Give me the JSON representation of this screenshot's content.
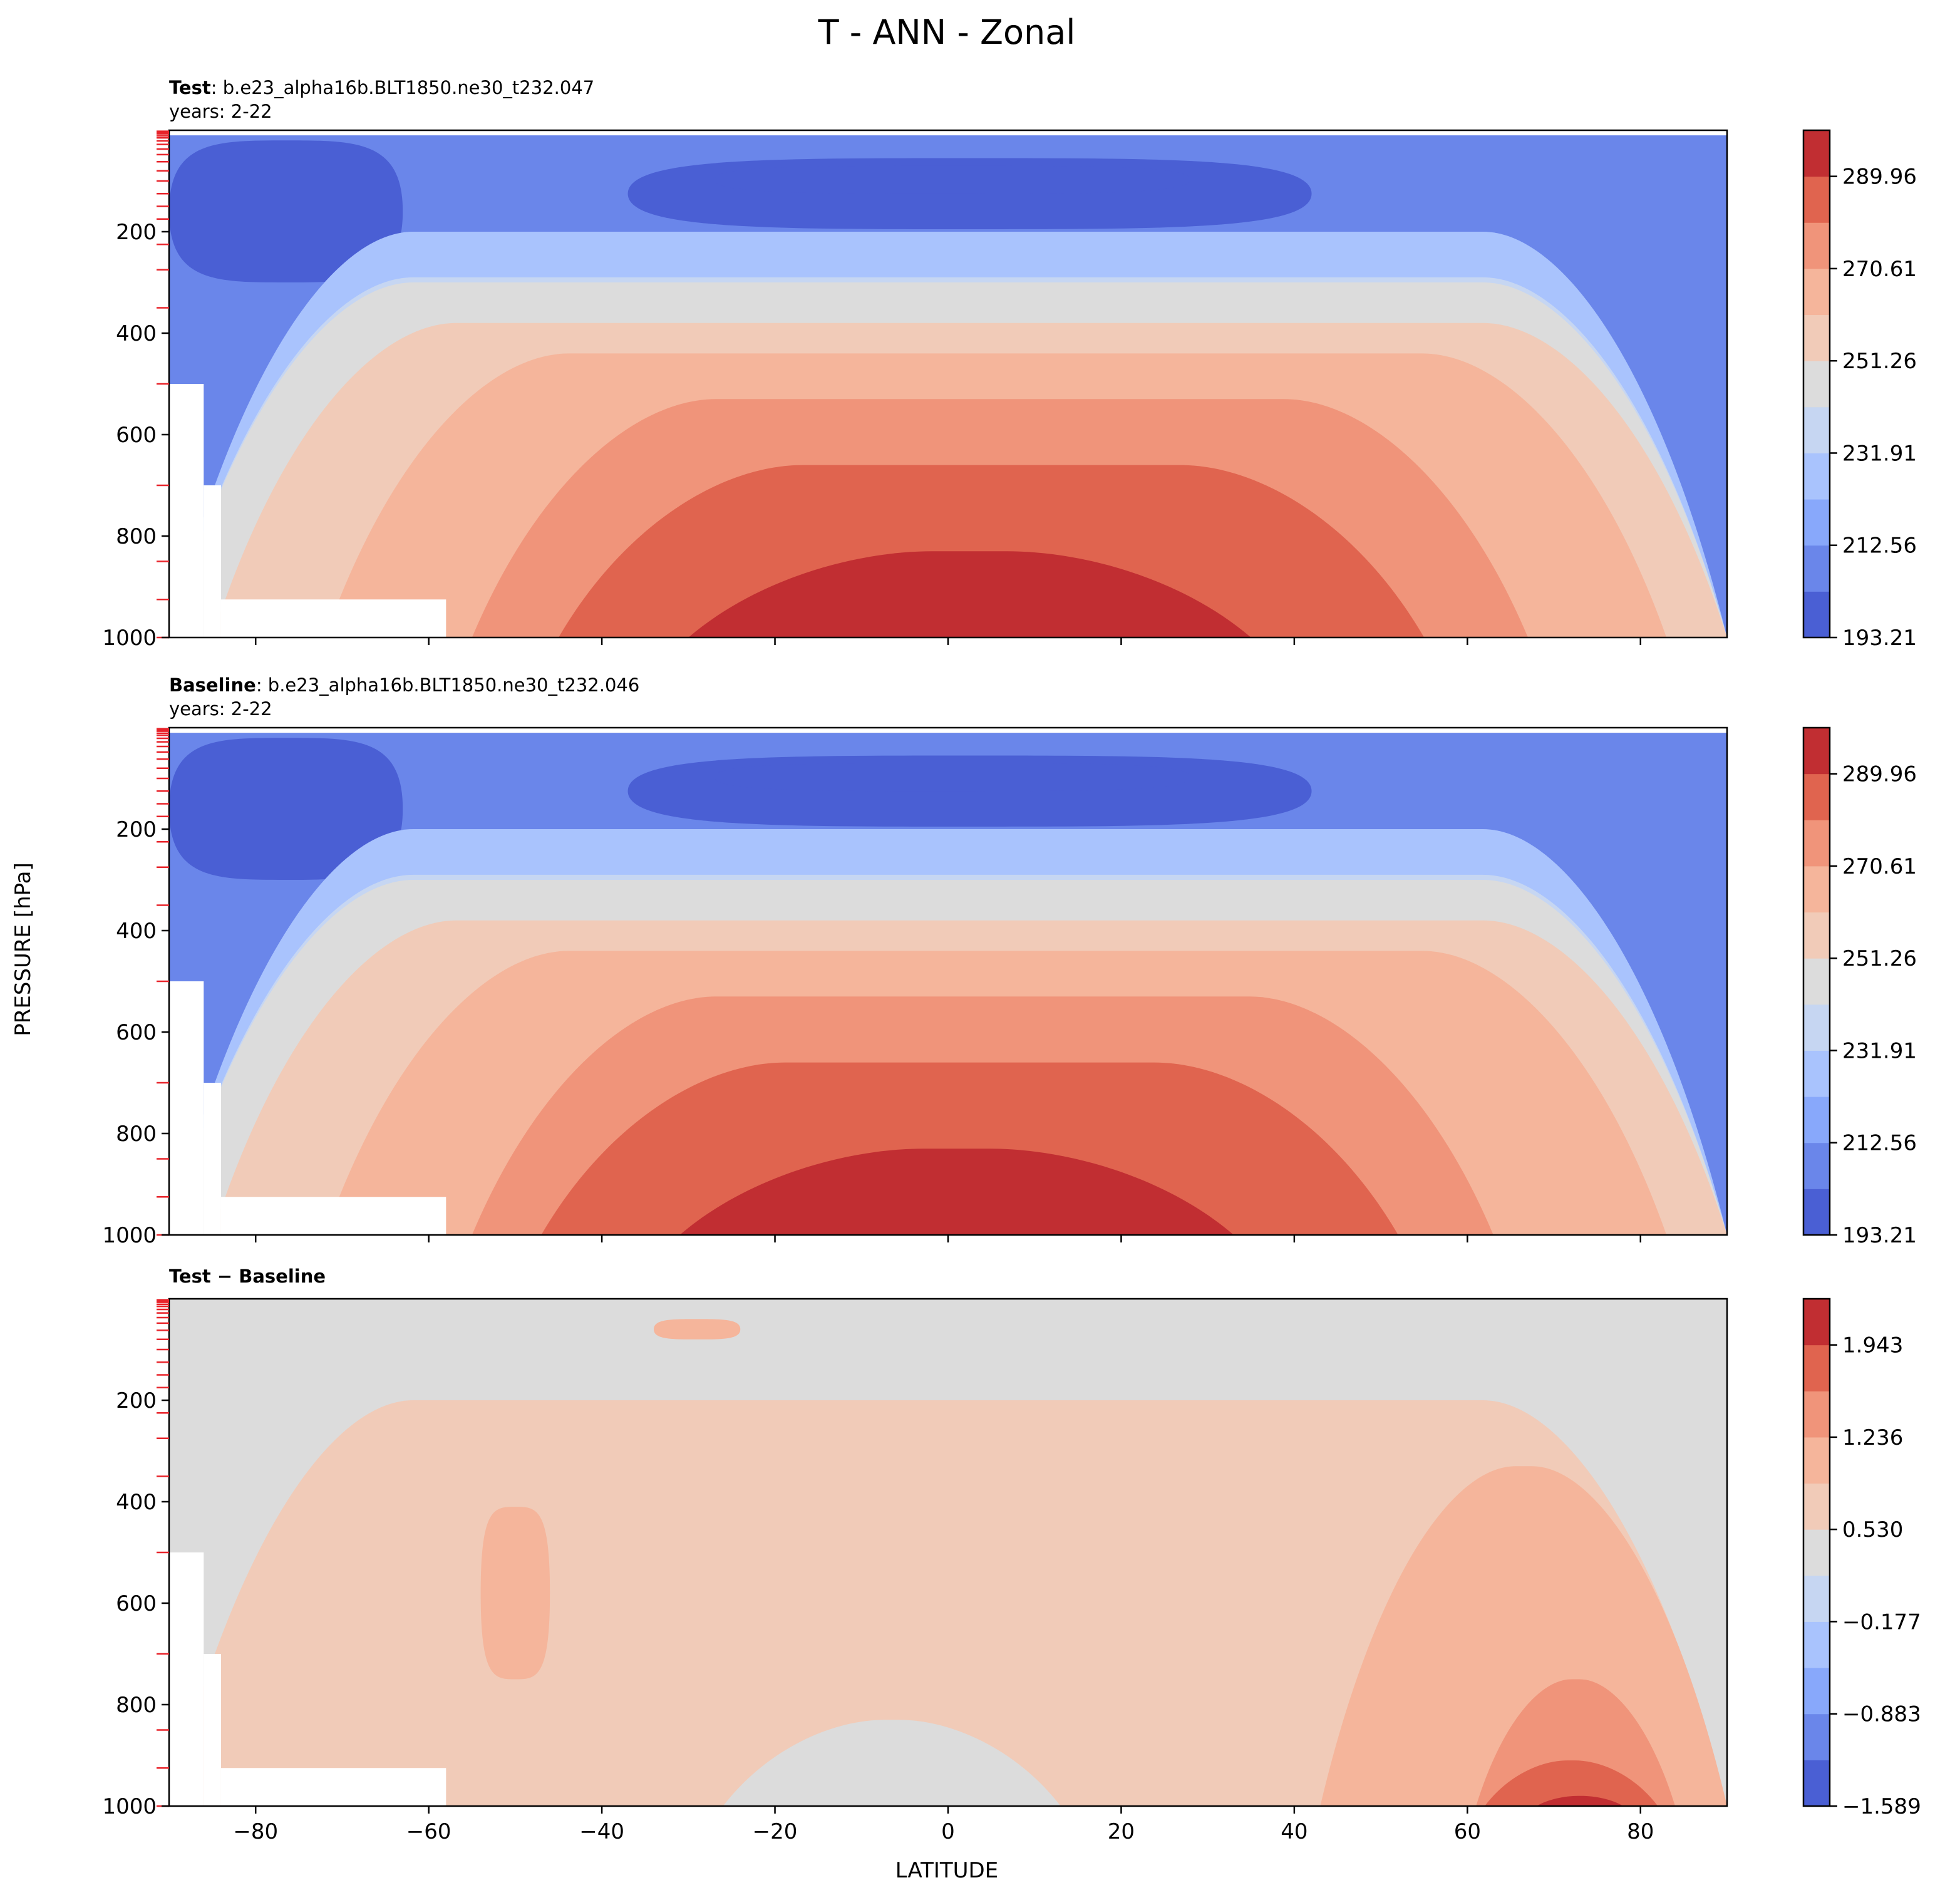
{
  "figure": {
    "title": "T - ANN - Zonal"
  },
  "panels": [
    {
      "id": "test",
      "label_bold": "Test",
      "label_rest": ": b.e23_alpha16b.BLT1850.ne30_t232.047",
      "years": "years: 2-22",
      "colorbar": {
        "ticks": [
          "193.21",
          "212.56",
          "231.91",
          "251.26",
          "270.61",
          "289.96"
        ],
        "colors": [
          "#4a5fd4",
          "#6a86ea",
          "#88a8fb",
          "#a9c3fd",
          "#c6d6f2",
          "#dcdcdc",
          "#f1cbb8",
          "#f5b59b",
          "#f0947a",
          "#e0644f",
          "#c12e32"
        ]
      }
    },
    {
      "id": "baseline",
      "label_bold": "Baseline",
      "label_rest": ": b.e23_alpha16b.BLT1850.ne30_t232.046",
      "years": "years: 2-22",
      "colorbar": {
        "ticks": [
          "193.21",
          "212.56",
          "231.91",
          "251.26",
          "270.61",
          "289.96"
        ],
        "colors": [
          "#4a5fd4",
          "#6a86ea",
          "#88a8fb",
          "#a9c3fd",
          "#c6d6f2",
          "#dcdcdc",
          "#f1cbb8",
          "#f5b59b",
          "#f0947a",
          "#e0644f",
          "#c12e32"
        ]
      }
    },
    {
      "id": "diff",
      "label_bold": "Test − Baseline",
      "label_rest": "",
      "years": "",
      "colorbar": {
        "ticks": [
          "−1.589",
          "−0.883",
          "−0.177",
          "0.530",
          "1.236",
          "1.943"
        ],
        "colors": [
          "#4a5fd4",
          "#6a86ea",
          "#88a8fb",
          "#a9c3fd",
          "#c6d6f2",
          "#dcdcdc",
          "#f1cbb8",
          "#f5b59b",
          "#f0947a",
          "#e0644f",
          "#c12e32"
        ]
      }
    }
  ],
  "chart_data": {
    "type": "contourf",
    "xlabel": "LATITUDE",
    "ylabel": "PRESSURE [hPa]",
    "xlim": [
      -90,
      90
    ],
    "ylim": [
      1000,
      0
    ],
    "xticks": [
      -80,
      -60,
      -40,
      -20,
      0,
      20,
      40,
      60,
      80
    ],
    "xtick_labels": [
      "−80",
      "−60",
      "−40",
      "−20",
      "0",
      "20",
      "40",
      "60",
      "80"
    ],
    "yticks": [
      200,
      400,
      600,
      800,
      1000
    ],
    "ytick_labels": [
      "200",
      "400",
      "600",
      "800",
      "1000"
    ],
    "model_levels_hPa": [
      2,
      4,
      7,
      11,
      15,
      21,
      28,
      37,
      48,
      62,
      80,
      100,
      125,
      150,
      175,
      225,
      275,
      350,
      500,
      700,
      850,
      925,
      1000
    ],
    "masked_regions": [
      {
        "panel": "all",
        "lat": [
          -90,
          -86
        ],
        "p": [
          500,
          1000
        ]
      },
      {
        "panel": "all",
        "lat": [
          -86,
          -84
        ],
        "p": [
          700,
          1000
        ]
      },
      {
        "panel": "all",
        "lat": [
          -84,
          -58
        ],
        "p": [
          925,
          1000
        ]
      }
    ],
    "series": [
      {
        "panel": "test",
        "fields": [
          {
            "level": 1,
            "lat": [
              -90,
              90
            ],
            "p_top": 10,
            "p_bottom": 1000,
            "note": "background"
          },
          {
            "level": 0,
            "lat": [
              -90,
              -63
            ],
            "p_top": 20,
            "p_bottom": 300
          },
          {
            "level": 0,
            "lat": [
              -37,
              42
            ],
            "p_top": 55,
            "p_bottom": 195
          },
          {
            "level": 0,
            "lat": [
              -27,
              28
            ],
            "p_top": 70,
            "p_bottom": 125
          },
          {
            "level": 3,
            "lat": [
              -90,
              90
            ],
            "p_top": 200,
            "p_bottom": 1000
          },
          {
            "level": 4,
            "lat": [
              -90,
              90
            ],
            "p_top": 290,
            "p_bottom": 1000
          },
          {
            "level": 5,
            "lat": [
              -90,
              90
            ],
            "p_top": 300,
            "p_bottom": 1000
          },
          {
            "level": 6,
            "lat": [
              -85,
              90
            ],
            "p_top": 380,
            "p_bottom": 1000
          },
          {
            "level": 7,
            "lat": [
              -72,
              83
            ],
            "p_top": 440,
            "p_bottom": 1000
          },
          {
            "level": 8,
            "lat": [
              -55,
              67
            ],
            "p_top": 530,
            "p_bottom": 1000
          },
          {
            "level": 9,
            "lat": [
              -45,
              55
            ],
            "p_top": 660,
            "p_bottom": 1000
          },
          {
            "level": 10,
            "lat": [
              -30,
              35
            ],
            "p_top": 830,
            "p_bottom": 1000
          }
        ]
      },
      {
        "panel": "baseline",
        "fields": [
          {
            "level": 1,
            "lat": [
              -90,
              90
            ],
            "p_top": 10,
            "p_bottom": 1000,
            "note": "background"
          },
          {
            "level": 0,
            "lat": [
              -90,
              -63
            ],
            "p_top": 20,
            "p_bottom": 300
          },
          {
            "level": 0,
            "lat": [
              -37,
              42
            ],
            "p_top": 55,
            "p_bottom": 195
          },
          {
            "level": 0,
            "lat": [
              -27,
              28
            ],
            "p_top": 70,
            "p_bottom": 125
          },
          {
            "level": 3,
            "lat": [
              -90,
              90
            ],
            "p_top": 200,
            "p_bottom": 1000
          },
          {
            "level": 4,
            "lat": [
              -90,
              90
            ],
            "p_top": 290,
            "p_bottom": 1000
          },
          {
            "level": 5,
            "lat": [
              -90,
              90
            ],
            "p_top": 300,
            "p_bottom": 1000
          },
          {
            "level": 6,
            "lat": [
              -85,
              90
            ],
            "p_top": 380,
            "p_bottom": 1000
          },
          {
            "level": 7,
            "lat": [
              -72,
              83
            ],
            "p_top": 440,
            "p_bottom": 1000
          },
          {
            "level": 8,
            "lat": [
              -55,
              63
            ],
            "p_top": 530,
            "p_bottom": 1000
          },
          {
            "level": 9,
            "lat": [
              -47,
              52
            ],
            "p_top": 660,
            "p_bottom": 1000
          },
          {
            "level": 10,
            "lat": [
              -31,
              33
            ],
            "p_top": 830,
            "p_bottom": 1000
          }
        ]
      },
      {
        "panel": "diff",
        "fields": [
          {
            "level": 5,
            "lat": [
              -90,
              90
            ],
            "p_top": 0,
            "p_bottom": 1000,
            "note": "background"
          },
          {
            "level": 6,
            "lat": [
              -90,
              90
            ],
            "p_top": 200,
            "p_bottom": 1000
          },
          {
            "level": 7,
            "lat": [
              -54,
              -46
            ],
            "p_top": 410,
            "p_bottom": 750
          },
          {
            "level": 7,
            "lat": [
              -34,
              -24
            ],
            "p_top": 40,
            "p_bottom": 80
          },
          {
            "level": 7,
            "lat": [
              43,
              90
            ],
            "p_top": 330,
            "p_bottom": 1000
          },
          {
            "level": 5,
            "lat": [
              -26,
              13
            ],
            "p_top": 830,
            "p_bottom": 1000
          },
          {
            "level": 8,
            "lat": [
              61,
              84
            ],
            "p_top": 750,
            "p_bottom": 1000
          },
          {
            "level": 9,
            "lat": [
              62,
              82
            ],
            "p_top": 910,
            "p_bottom": 1000
          },
          {
            "level": 10,
            "lat": [
              68,
              78
            ],
            "p_top": 980,
            "p_bottom": 1000
          }
        ]
      }
    ]
  }
}
